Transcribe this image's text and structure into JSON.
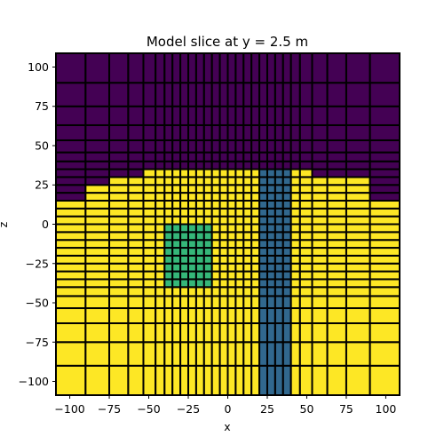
{
  "chart_data": {
    "type": "heatmap",
    "title": "Model slice at y = 2.5 m",
    "xlabel": "x",
    "ylabel": "z",
    "xlim": [
      -108.75,
      108.75
    ],
    "ylim": [
      -108.75,
      108.75
    ],
    "xticks": [
      -100,
      -75,
      -50,
      -25,
      0,
      25,
      50,
      75,
      100
    ],
    "yticks": [
      -100,
      -75,
      -50,
      -25,
      0,
      25,
      50,
      75,
      100
    ],
    "tick_labels_x": [
      "−100",
      "−75",
      "−50",
      "−25",
      "0",
      "25",
      "50",
      "75",
      "100"
    ],
    "tick_labels_y": [
      "−100",
      "−75",
      "−50",
      "−25",
      "0",
      "25",
      "50",
      "75",
      "100"
    ],
    "grid": false,
    "cell_edges_x": [
      -108.75,
      -90.0,
      -75.0,
      -63.0,
      -53.4,
      -45.7,
      -40.0,
      -35.0,
      -30.0,
      -25.0,
      -20.0,
      -15.0,
      -10.0,
      -5.0,
      0.0,
      5.0,
      10.0,
      15.0,
      20.0,
      25.0,
      30.0,
      35.0,
      40.0,
      45.7,
      53.4,
      63.0,
      75.0,
      90.0,
      108.75
    ],
    "cell_edges_z": [
      -108.75,
      -90.0,
      -75.0,
      -63.0,
      -53.4,
      -45.7,
      -40.0,
      -35.0,
      -30.0,
      -25.0,
      -20.0,
      -15.0,
      -10.0,
      -5.0,
      0.0,
      5.0,
      10.0,
      15.0,
      20.0,
      25.0,
      30.0,
      35.0,
      40.0,
      45.7,
      53.4,
      63.0,
      75.0,
      90.0,
      108.75
    ],
    "colors": {
      "air": "#440154",
      "background": "#fde725",
      "block_center": "#35b779",
      "block_right": "#31688e",
      "edge": "#000000"
    },
    "regions": [
      {
        "name": "background",
        "color_key": "background",
        "value_class": "background"
      },
      {
        "name": "air",
        "color_key": "air",
        "above_topography": true
      },
      {
        "name": "block_center",
        "color_key": "block_center",
        "x": [
          -40,
          -10
        ],
        "z": [
          -40,
          0
        ]
      },
      {
        "name": "block_right",
        "color_key": "block_right",
        "x": [
          20,
          40
        ],
        "z": [
          -108.75,
          35
        ]
      }
    ],
    "topography": [
      {
        "x": [
          -108.75,
          -90
        ],
        "z": 15
      },
      {
        "x": [
          -90,
          -75
        ],
        "z": 25
      },
      {
        "x": [
          -75,
          -53.4
        ],
        "z": 30
      },
      {
        "x": [
          -53.4,
          53.4
        ],
        "z": 35
      },
      {
        "x": [
          53.4,
          90
        ],
        "z": 30
      },
      {
        "x": [
          90,
          108.75
        ],
        "z": 15
      }
    ]
  }
}
